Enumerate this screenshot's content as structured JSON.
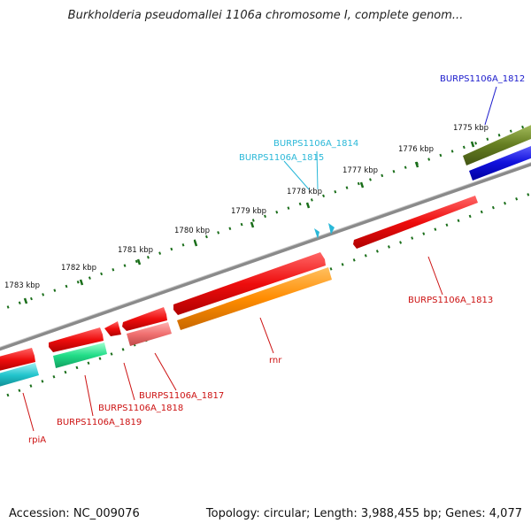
{
  "title": "Burkholderia pseudomallei 1106a chromosome I, complete genom...",
  "footer": {
    "accession": "Accession: NC_009076",
    "topology": "Topology: circular; Length: 3,988,455 bp; Genes: 4,077"
  },
  "kbp_labels": [
    "1775 kbp",
    "1776 kbp",
    "1777 kbp",
    "1778 kbp",
    "1779 kbp",
    "1780 kbp",
    "1781 kbp",
    "1782 kbp",
    "1783 kbp"
  ],
  "gene_labels": [
    {
      "id": "burps-1812",
      "text": "BURPS1106A_1812",
      "color": "#1a1acc"
    },
    {
      "id": "burps-1814",
      "text": "BURPS1106A_1814",
      "color": "#2ab8d8"
    },
    {
      "id": "burps-1815",
      "text": "BURPS1106A_1815",
      "color": "#2ab8d8"
    },
    {
      "id": "burps-1813",
      "text": "BURPS1106A_1813",
      "color": "#cc1111"
    },
    {
      "id": "rnr",
      "text": "rnr",
      "color": "#cc1111"
    },
    {
      "id": "burps-1817",
      "text": "BURPS1106A_1817",
      "color": "#cc1111"
    },
    {
      "id": "burps-1818",
      "text": "BURPS1106A_1818",
      "color": "#cc1111"
    },
    {
      "id": "burps-1819",
      "text": "BURPS1106A_1819",
      "color": "#cc1111"
    },
    {
      "id": "rpia",
      "text": "rpiA",
      "color": "#cc1111"
    }
  ],
  "colors": {
    "red_gene": "#ee1111",
    "orange_gene": "#ff8c00",
    "pink_gene": "#f07070",
    "green_gene": "#22dd88",
    "cyan_gene": "#22c4cc",
    "olive_gene": "#667f22",
    "blue_gene": "#1111dd",
    "backbone": "#888888",
    "tick": "#1a6e1a"
  }
}
